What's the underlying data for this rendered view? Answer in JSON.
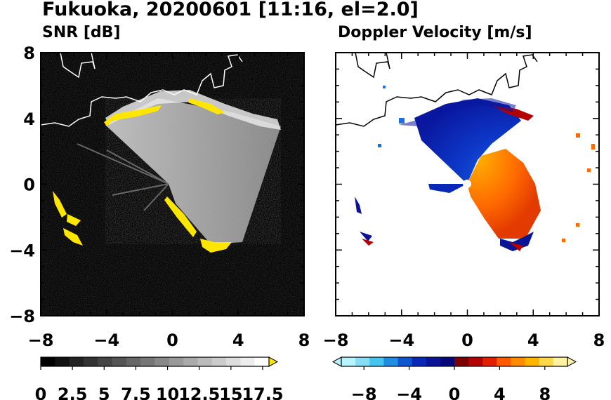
{
  "figure": {
    "title": "Fukuoka, 20200601 [11:16, el=2.0]"
  },
  "chart_data": [
    {
      "type": "heatmap",
      "title": "SNR [dB]",
      "x_ticks": [
        "−8",
        "−4",
        "0",
        "4",
        "8"
      ],
      "y_ticks": [
        "8",
        "4",
        "0",
        "−4",
        "−8"
      ],
      "xlim": [
        -8,
        8
      ],
      "ylim": [
        -8,
        8
      ],
      "colorbar": {
        "labels": [
          "0",
          "2.5",
          "5",
          "7.5",
          "10",
          "12.5",
          "15",
          "17.5"
        ],
        "range": [
          0,
          18
        ],
        "colors": [
          "#000000",
          "#111111",
          "#222222",
          "#333333",
          "#444444",
          "#555555",
          "#666666",
          "#777777",
          "#888888",
          "#999999",
          "#aaaaaa",
          "#bbbbbb",
          "#cccccc",
          "#dddddd",
          "#eeeeee",
          "#ffffff"
        ],
        "extend_color": "#ffe600"
      }
    },
    {
      "type": "heatmap",
      "title": "Doppler Velocity [m/s]",
      "x_ticks": [
        "−8",
        "−4",
        "0",
        "4",
        "8"
      ],
      "y_ticks": [],
      "xlim": [
        -8,
        8
      ],
      "ylim": [
        -8,
        8
      ],
      "colorbar": {
        "labels": [
          "−8",
          "−4",
          "0",
          "4",
          "8"
        ],
        "range": [
          -10,
          10
        ],
        "colors": [
          "#b8f4ff",
          "#88ddf5",
          "#44c4ee",
          "#1f8de0",
          "#0f55d0",
          "#0a28b8",
          "#0a1494",
          "#06087a",
          "#7a0000",
          "#b30000",
          "#e02000",
          "#ff5a00",
          "#ff8c00",
          "#ffb400",
          "#ffd84a",
          "#fff2a0"
        ]
      }
    }
  ]
}
